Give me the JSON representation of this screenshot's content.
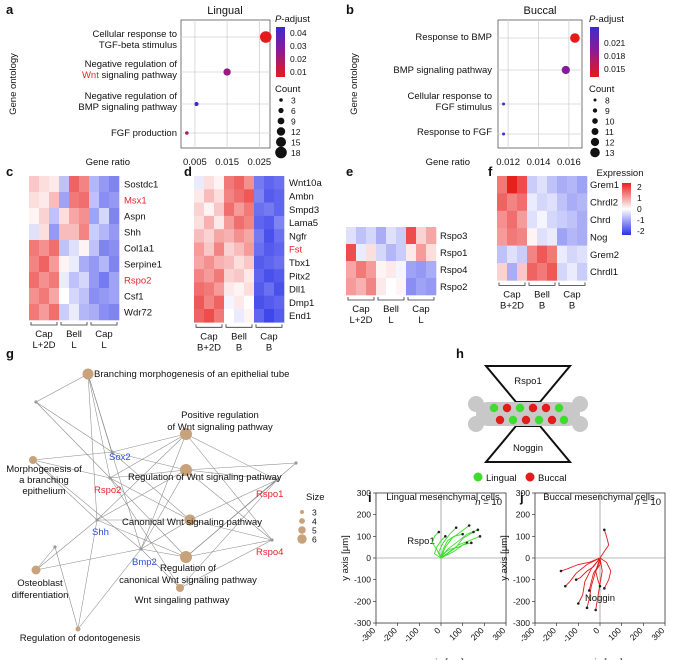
{
  "colors": {
    "red_gene": "#e8222b",
    "blue_gene": "#2a4ed8",
    "lingual": "#3ddc2e",
    "buccal": "#e21b1b",
    "node": "#c8a27a"
  },
  "panel_labels": {
    "a": "a",
    "b": "b",
    "c": "c",
    "d": "d",
    "e": "e",
    "f": "f",
    "g": "g",
    "h": "h",
    "i": "i",
    "j": "j"
  },
  "panel_a": {
    "title": "Lingual",
    "ylabel": "Gene ontology",
    "xlabel": "Gene ratio",
    "terms": [
      {
        "lines": [
          "Cellular response to",
          "TGF-beta stimulus"
        ]
      },
      {
        "lines": [
          "Negative regulation of",
          "signaling pathway"
        ],
        "red_word": "Wnt"
      },
      {
        "lines": [
          "Negative regulation of",
          "BMP signaling pathway"
        ]
      },
      {
        "lines": [
          "FGF production"
        ]
      }
    ],
    "xticks": [
      "0.005",
      "0.015",
      "0.025"
    ],
    "legend_title_italic": "P",
    "legend_title_rest": "-adjust",
    "colorbar_ticks": [
      "0.04",
      "0.03",
      "0.02",
      "0.01"
    ],
    "count_title": "Count",
    "count_values": [
      "3",
      "6",
      "9",
      "12",
      "15",
      "18"
    ]
  },
  "panel_b": {
    "title": "Buccal",
    "ylabel": "Gene ontology",
    "xlabel": "Gene ratio",
    "terms": [
      {
        "lines": [
          "Response to BMP"
        ]
      },
      {
        "lines": [
          "BMP signaling pathway"
        ]
      },
      {
        "lines": [
          "Cellular response to",
          "FGF stimulus"
        ]
      },
      {
        "lines": [
          "Response to FGF"
        ]
      }
    ],
    "xticks": [
      "0.012",
      "0.014",
      "0.016"
    ],
    "legend_title_italic": "P",
    "legend_title_rest": "-adjust",
    "colorbar_ticks": [
      "0.021",
      "0.018",
      "0.015"
    ],
    "count_title": "Count",
    "count_values": [
      "8",
      "9",
      "10",
      "11",
      "12",
      "13"
    ]
  },
  "chart_data": [
    {
      "type": "scatter",
      "panel": "a",
      "title": "Lingual",
      "xlabel": "Gene ratio",
      "ylabel": "Gene ontology",
      "xlim": [
        0.001,
        0.028
      ],
      "categories": [
        "Cellular response to TGF-beta stimulus",
        "Negative regulation of Wnt signaling pathway",
        "Negative regulation of BMP signaling pathway",
        "FGF production"
      ],
      "gene_ratio": [
        0.027,
        0.015,
        0.0055,
        0.0025
      ],
      "count": [
        18,
        10,
        4,
        3
      ],
      "p_adjust": [
        0.01,
        0.025,
        0.045,
        0.02
      ]
    },
    {
      "type": "scatter",
      "panel": "b",
      "title": "Buccal",
      "xlabel": "Gene ratio",
      "ylabel": "Gene ontology",
      "xlim": [
        0.0114,
        0.0168
      ],
      "categories": [
        "Response to BMP",
        "BMP signaling pathway",
        "Cellular response to FGF stimulus",
        "Response to FGF"
      ],
      "gene_ratio": [
        0.0164,
        0.0158,
        0.0117,
        0.0117
      ],
      "count": [
        13,
        12,
        8,
        8
      ],
      "p_adjust": [
        0.013,
        0.018,
        0.021,
        0.0225
      ]
    },
    {
      "type": "heatmap",
      "panel": "c",
      "rows": [
        "Sostdc1",
        "Msx1",
        "Aspn",
        "Shh",
        "Col1a1",
        "Serpine1",
        "Rspo2",
        "Csf1",
        "Wdr72"
      ],
      "red_rows": [
        "Msx1",
        "Rspo2"
      ],
      "groups": [
        {
          "line1": "Cap",
          "line2": "L+2D"
        },
        {
          "line1": "Bell",
          "line2": "L"
        },
        {
          "line1": "Cap",
          "line2": "L"
        }
      ],
      "values": [
        [
          0.5,
          0.3,
          0.2,
          -0.6,
          1.4,
          1.1,
          -0.7,
          -1.0,
          -1.2
        ],
        [
          0.3,
          0.2,
          0.6,
          -0.9,
          1.2,
          1.3,
          -0.6,
          -1.1,
          -1.0
        ],
        [
          0.1,
          0.4,
          -0.6,
          0.3,
          0.8,
          1.0,
          -0.9,
          -0.4,
          -1.2
        ],
        [
          -0.3,
          0.3,
          -1.0,
          0.6,
          0.6,
          1.1,
          -0.5,
          -0.7,
          -1.0
        ],
        [
          1.2,
          1.0,
          1.3,
          -0.6,
          -0.3,
          0.1,
          -0.6,
          -1.2,
          -1.1
        ],
        [
          1.1,
          1.4,
          0.9,
          0.1,
          -0.2,
          -0.8,
          -1.0,
          -0.7,
          -1.2
        ],
        [
          1.3,
          1.0,
          1.2,
          -0.2,
          -0.6,
          -0.4,
          -1.0,
          -1.3,
          -0.9
        ],
        [
          1.0,
          1.2,
          0.8,
          0.0,
          -0.4,
          -0.6,
          -1.1,
          -1.0,
          -0.9
        ],
        [
          1.2,
          0.9,
          1.3,
          -0.5,
          -0.2,
          -0.7,
          -0.8,
          -1.1,
          -1.2
        ]
      ]
    },
    {
      "type": "heatmap",
      "panel": "d",
      "rows": [
        "Wnt10a",
        "Ambn",
        "Smpd3",
        "Lama5",
        "Ngfr",
        "Fst",
        "Tbx1",
        "Pitx2",
        "Dll1",
        "Dmp1",
        "End1"
      ],
      "red_rows": [
        "Fst"
      ],
      "groups": [
        {
          "line1": "Cap",
          "line2": "B+2D"
        },
        {
          "line1": "Bell",
          "line2": "B"
        },
        {
          "line1": "Cap",
          "line2": "B"
        }
      ],
      "values": [
        [
          -0.2,
          0.3,
          0.1,
          1.2,
          1.4,
          1.0,
          -1.3,
          -1.5,
          -1.4
        ],
        [
          0.2,
          0.6,
          0.3,
          1.1,
          1.3,
          1.5,
          -1.2,
          -1.6,
          -1.5
        ],
        [
          0.4,
          0.1,
          0.5,
          1.3,
          0.9,
          1.2,
          -1.4,
          -1.3,
          -1.5
        ],
        [
          0.3,
          0.7,
          0.2,
          0.9,
          1.3,
          1.1,
          -1.5,
          -1.6,
          -1.2
        ],
        [
          0.6,
          0.4,
          0.8,
          0.7,
          1.0,
          0.8,
          -1.3,
          -1.7,
          -1.4
        ],
        [
          0.9,
          0.5,
          1.1,
          0.4,
          0.6,
          0.9,
          -1.4,
          -1.6,
          -1.5
        ],
        [
          0.8,
          1.0,
          0.7,
          0.6,
          0.3,
          0.5,
          -1.6,
          -1.5,
          -1.4
        ],
        [
          1.1,
          0.9,
          1.2,
          0.4,
          0.5,
          0.2,
          -1.5,
          -1.7,
          -1.6
        ],
        [
          1.3,
          1.2,
          0.9,
          0.2,
          0.1,
          0.3,
          -1.6,
          -1.4,
          -1.7
        ],
        [
          1.5,
          1.1,
          1.4,
          -0.1,
          0.2,
          0.0,
          -1.7,
          -1.6,
          -1.5
        ],
        [
          1.4,
          1.6,
          1.2,
          0.0,
          -0.2,
          0.1,
          -1.5,
          -1.8,
          -1.6
        ]
      ]
    },
    {
      "type": "heatmap",
      "panel": "e",
      "rows": [
        "Rspo3",
        "Rspo1",
        "Rspo4",
        "Rspo2"
      ],
      "red_rows": [],
      "groups": [
        {
          "line1": "Cap",
          "line2": "L+2D"
        },
        {
          "line1": "Bell",
          "line2": "L"
        },
        {
          "line1": "Cap",
          "line2": "L"
        }
      ],
      "values": [
        [
          -0.3,
          -0.6,
          -0.4,
          -0.8,
          -0.3,
          -0.5,
          1.6,
          0.4,
          0.8
        ],
        [
          1.6,
          -0.2,
          0.3,
          -0.4,
          -0.7,
          -0.5,
          0.2,
          0.9,
          0.3
        ],
        [
          0.8,
          1.2,
          0.9,
          0.1,
          0.2,
          -0.1,
          -0.9,
          -1.0,
          -0.8
        ],
        [
          0.9,
          0.7,
          1.1,
          0.2,
          0.0,
          0.1,
          -1.1,
          -0.9,
          -1.0
        ]
      ]
    },
    {
      "type": "heatmap",
      "panel": "f",
      "title": "Expression",
      "rows": [
        "Grem1",
        "Chrdl2",
        "Chrd",
        "Nog",
        "Grem2",
        "Chrdl1"
      ],
      "red_rows": [],
      "groups": [
        {
          "line1": "Cap",
          "line2": "B+2D"
        },
        {
          "line1": "Bell",
          "line2": "B"
        },
        {
          "line1": "Cap",
          "line2": "B"
        }
      ],
      "colorbar_ticks": [
        "2",
        "1",
        "0",
        "-1",
        "-2"
      ],
      "values": [
        [
          1.2,
          2.0,
          1.6,
          -0.5,
          -0.3,
          -0.6,
          -0.8,
          -0.7,
          -0.9
        ],
        [
          1.4,
          1.1,
          1.3,
          -0.2,
          -0.4,
          -0.3,
          -0.6,
          -0.8,
          -0.7
        ],
        [
          1.0,
          1.3,
          0.9,
          -0.3,
          -0.1,
          -0.4,
          -0.5,
          -0.6,
          -0.8
        ],
        [
          0.9,
          1.2,
          1.1,
          0.1,
          -0.3,
          -0.2,
          -0.9,
          -0.7,
          -0.8
        ],
        [
          -0.6,
          -0.3,
          -0.5,
          1.1,
          1.5,
          1.2,
          -0.2,
          -0.4,
          -0.3
        ],
        [
          0.4,
          -0.8,
          0.5,
          1.4,
          1.2,
          1.5,
          -0.4,
          -0.2,
          -0.5
        ]
      ]
    }
  ],
  "panel_g": {
    "size_title": "Size",
    "size_values": [
      "3",
      "4",
      "5",
      "6"
    ],
    "terms": [
      {
        "id": "t1",
        "label": [
          "Branching morphogenesis of an epithelial tube"
        ]
      },
      {
        "id": "t2",
        "label": [
          "Positive regulation",
          "of Wnt signaling pathway"
        ]
      },
      {
        "id": "t3",
        "label": [
          "Morphogenesis of",
          "a branching",
          "epithelium"
        ]
      },
      {
        "id": "t4",
        "label": [
          "Regulation of Wnt signaling pathway"
        ]
      },
      {
        "id": "t5",
        "label": [
          "Canonical Wnt signaling pathway"
        ]
      },
      {
        "id": "t6",
        "label": [
          "Regulation of",
          "canonical Wnt signaling pathway"
        ]
      },
      {
        "id": "t7",
        "label": [
          "Osteoblast",
          "differentiation"
        ]
      },
      {
        "id": "t8",
        "label": [
          "Wnt singaling pathway"
        ]
      },
      {
        "id": "t9",
        "label": [
          "Regulation of odontogenesis"
        ]
      }
    ],
    "genes": [
      {
        "id": "sox2",
        "label": "Sox2",
        "color": "blue"
      },
      {
        "id": "rspo2",
        "label": "Rspo2",
        "color": "red"
      },
      {
        "id": "shh",
        "label": "Shh",
        "color": "blue"
      },
      {
        "id": "bmp2",
        "label": "Bmp2",
        "color": "blue"
      },
      {
        "id": "rspo1",
        "label": "Rspo1",
        "color": "red"
      },
      {
        "id": "rspo4",
        "label": "Rspo4",
        "color": "red"
      }
    ]
  },
  "panel_h": {
    "top_label": "Rspo1",
    "bottom_label": "Noggin",
    "legend": [
      {
        "label": "Lingual"
      },
      {
        "label": "Buccal"
      }
    ]
  },
  "panel_i": {
    "title": "Lingual mesenchymal cells",
    "n_italic": "n",
    "n_rest": " = 10",
    "annotation": "Rspo1",
    "xlabel": "x axis [μm]",
    "ylabel": "y axis [μm]",
    "yticks": [
      "300",
      "200",
      "100",
      "0",
      "-100",
      "-200",
      "-300"
    ],
    "xticks": [
      "-300",
      "-200",
      "-100",
      "0",
      "100",
      "200",
      "300"
    ]
  },
  "panel_j": {
    "title": "Buccal mesenchymal cells",
    "n_italic": "n",
    "n_rest": " = 10",
    "annotation": "Noggin",
    "xlabel": "x axis [μm]",
    "ylabel": "y axis [μm]",
    "yticks": [
      "300",
      "200",
      "100",
      "0",
      "-100",
      "-200",
      "-300"
    ],
    "xticks": [
      "-300",
      "-200",
      "-100",
      "0",
      "100",
      "200",
      "300"
    ]
  }
}
